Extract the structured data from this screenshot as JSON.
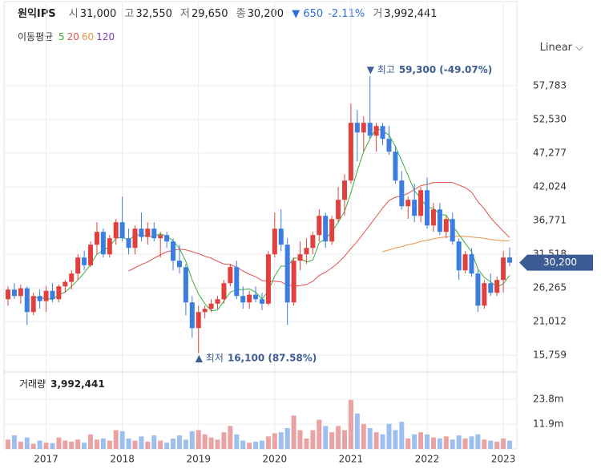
{
  "header": {
    "name": "원익IPS",
    "open_label": "시",
    "open": "31,000",
    "high_label": "고",
    "high": "32,550",
    "low_label": "저",
    "low": "29,650",
    "close_label": "종",
    "close": "30,200",
    "change": "▼ 650",
    "change_pct": "-2.11%",
    "volume_label": "거",
    "volume": "3,992,441"
  },
  "chart_data": {
    "type": "candlestick",
    "categories": [
      null,
      null,
      null,
      null,
      null,
      null,
      "2017",
      null,
      null,
      null,
      null,
      null,
      null,
      null,
      null,
      null,
      null,
      null,
      "2018",
      null,
      null,
      null,
      null,
      null,
      null,
      null,
      null,
      null,
      null,
      null,
      "2019",
      null,
      null,
      null,
      null,
      null,
      null,
      null,
      null,
      null,
      null,
      null,
      "2020",
      null,
      null,
      null,
      null,
      null,
      null,
      null,
      null,
      null,
      null,
      null,
      "2021",
      null,
      null,
      null,
      null,
      null,
      null,
      null,
      null,
      null,
      null,
      null,
      "2022",
      null,
      null,
      null,
      null,
      null,
      null,
      null,
      null,
      null,
      null,
      null,
      "2023",
      null
    ],
    "open": [
      24500,
      26000,
      25000,
      26200,
      22500,
      25000,
      24200,
      25800,
      24500,
      26500,
      27200,
      28500,
      31000,
      29800,
      33000,
      35000,
      31500,
      34000,
      36500,
      34000,
      32500,
      35500,
      34200,
      35500,
      34000,
      34500,
      33500,
      30500,
      29500,
      24000,
      20000,
      22500,
      23000,
      23800,
      24500,
      27000,
      29500,
      25000,
      24000,
      25200,
      24500,
      23800,
      31500,
      35500,
      33000,
      24000,
      30500,
      31500,
      32500,
      34500,
      37500,
      33500,
      37000,
      40000,
      43000,
      52000,
      50500,
      52000,
      50000,
      51500,
      49500,
      47500,
      43000,
      39000,
      40000,
      37500,
      41500,
      36000,
      38500,
      35000,
      37000,
      33500,
      29000,
      31500,
      28500,
      23500,
      27000,
      25500,
      27500,
      31000
    ],
    "high": [
      26500,
      27000,
      26800,
      26500,
      25500,
      26000,
      26500,
      27000,
      26800,
      27500,
      29000,
      31500,
      32000,
      33500,
      36500,
      35500,
      34500,
      37000,
      40500,
      35500,
      36000,
      38000,
      36500,
      36500,
      35000,
      35000,
      34000,
      33000,
      30000,
      25000,
      23500,
      23500,
      24500,
      25000,
      27500,
      30000,
      30500,
      26500,
      25800,
      26500,
      25500,
      32000,
      38000,
      38500,
      34000,
      31000,
      33500,
      34000,
      35000,
      38500,
      38000,
      37500,
      42000,
      44000,
      55000,
      54000,
      53000,
      59300,
      52000,
      52000,
      51500,
      48500,
      44500,
      40500,
      42500,
      42000,
      43500,
      39500,
      39500,
      37500,
      38000,
      34000,
      32000,
      32500,
      29000,
      27500,
      28500,
      28000,
      32000,
      32550
    ],
    "low": [
      23500,
      24500,
      23800,
      20500,
      22000,
      23000,
      22500,
      24000,
      24000,
      25500,
      26000,
      27500,
      29000,
      29500,
      31500,
      31000,
      31000,
      33000,
      33500,
      31500,
      31500,
      33500,
      33000,
      33500,
      31000,
      32500,
      29000,
      28500,
      22000,
      18500,
      16100,
      21500,
      22500,
      23000,
      23800,
      26500,
      24500,
      23000,
      23000,
      24000,
      22800,
      23500,
      31000,
      32000,
      20500,
      23500,
      29000,
      30000,
      31500,
      33500,
      32500,
      33000,
      36500,
      37500,
      42500,
      46000,
      47500,
      49500,
      47500,
      48500,
      47000,
      42500,
      38500,
      37000,
      36500,
      36500,
      35500,
      35000,
      34500,
      34000,
      33000,
      27500,
      28500,
      28000,
      22500,
      23000,
      25000,
      25000,
      25500,
      29650
    ],
    "close": [
      26000,
      25000,
      26200,
      22500,
      25000,
      24200,
      25800,
      24500,
      26500,
      27200,
      28500,
      31000,
      29800,
      33000,
      35000,
      31500,
      34000,
      36500,
      34000,
      32500,
      35500,
      34200,
      35500,
      34000,
      34500,
      33500,
      30500,
      29500,
      24000,
      20000,
      22500,
      23000,
      23800,
      24500,
      27000,
      29500,
      25000,
      24000,
      25200,
      24500,
      23800,
      31500,
      35500,
      33000,
      24000,
      30500,
      31500,
      32500,
      34500,
      37500,
      33500,
      37000,
      40000,
      43000,
      52000,
      50500,
      52000,
      50000,
      51500,
      49500,
      47500,
      43000,
      39000,
      40000,
      37500,
      41500,
      36000,
      38500,
      35000,
      37000,
      33500,
      29000,
      31500,
      28500,
      23500,
      27000,
      25500,
      27500,
      31000,
      30200
    ],
    "colors": {
      "up": "#e0413f",
      "down": "#3b7de0"
    },
    "ylim": [
      13400,
      60900
    ],
    "yticks": [
      {
        "value": 15759,
        "label": "15,759"
      },
      {
        "value": 21012,
        "label": "21,012"
      },
      {
        "value": 26265,
        "label": "26,265"
      },
      {
        "value": 31518,
        "label": "31,518"
      },
      {
        "value": 36771,
        "label": "36,771"
      },
      {
        "value": 42024,
        "label": "42,024"
      },
      {
        "value": 47277,
        "label": "47,277"
      },
      {
        "value": 52530,
        "label": "52,530"
      },
      {
        "value": 57783,
        "label": "57,783"
      }
    ],
    "grid": true,
    "moving_average_title": "이동평균",
    "moving_averages": [
      {
        "name": "5",
        "color": "#3cae3c",
        "values": [
          null,
          null,
          null,
          null,
          24900,
          24600,
          24700,
          24400,
          25200,
          25600,
          26500,
          27500,
          28600,
          29900,
          31500,
          32100,
          32700,
          34000,
          34200,
          33700,
          34500,
          34500,
          34300,
          34300,
          34700,
          34300,
          33600,
          32400,
          30400,
          27500,
          25300,
          23800,
          22700,
          22800,
          24200,
          25600,
          26000,
          26000,
          26100,
          25600,
          24500,
          25800,
          28100,
          29700,
          29600,
          30900,
          30900,
          30300,
          30600,
          33300,
          33900,
          35000,
          36500,
          38200,
          41100,
          44500,
          47500,
          49500,
          51200,
          50700,
          50100,
          48300,
          46100,
          43800,
          41400,
          40200,
          38800,
          38700,
          37700,
          37600,
          36000,
          34600,
          33200,
          31900,
          29200,
          27900,
          27200,
          26400,
          26900,
          28200
        ]
      },
      {
        "name": "20",
        "color": "#e0524f",
        "values": [
          null,
          null,
          null,
          null,
          null,
          null,
          null,
          null,
          null,
          null,
          null,
          null,
          null,
          null,
          null,
          null,
          null,
          null,
          null,
          28900,
          29400,
          29900,
          30300,
          30900,
          31400,
          31900,
          32100,
          32300,
          32200,
          31900,
          31600,
          31200,
          30900,
          30400,
          30000,
          29900,
          29500,
          28900,
          28400,
          28000,
          27400,
          27300,
          27300,
          27200,
          26700,
          26600,
          26600,
          26800,
          27300,
          28200,
          28700,
          29400,
          30200,
          31200,
          32400,
          33500,
          34800,
          36100,
          37400,
          38700,
          39900,
          40400,
          40600,
          41000,
          41600,
          42200,
          42400,
          42700,
          42700,
          42700,
          42700,
          42300,
          41900,
          41200,
          39700,
          38600,
          37200,
          36100,
          35100,
          34100
        ]
      },
      {
        "name": "60",
        "color": "#e8944a",
        "values": [
          null,
          null,
          null,
          null,
          null,
          null,
          null,
          null,
          null,
          null,
          null,
          null,
          null,
          null,
          null,
          null,
          null,
          null,
          null,
          null,
          null,
          null,
          null,
          null,
          null,
          null,
          null,
          null,
          null,
          null,
          null,
          null,
          null,
          null,
          null,
          null,
          null,
          null,
          null,
          null,
          null,
          null,
          null,
          null,
          null,
          null,
          null,
          null,
          null,
          null,
          null,
          null,
          null,
          null,
          null,
          null,
          null,
          null,
          null,
          31900,
          32200,
          32500,
          32700,
          33000,
          33200,
          33500,
          33700,
          33900,
          34100,
          34200,
          34300,
          34300,
          34300,
          34200,
          34100,
          34000,
          33800,
          33700,
          33600,
          33600
        ]
      },
      {
        "name": "120",
        "color": "#7a3fc4",
        "values": [
          null,
          null,
          null,
          null,
          null,
          null,
          null,
          null,
          null,
          null,
          null,
          null,
          null,
          null,
          null,
          null,
          null,
          null,
          null,
          null,
          null,
          null,
          null,
          null,
          null,
          null,
          null,
          null,
          null,
          null,
          null,
          null,
          null,
          null,
          null,
          null,
          null,
          null,
          null,
          null,
          null,
          null,
          null,
          null,
          null,
          null,
          null,
          null,
          null,
          null,
          null,
          null,
          null,
          null,
          null,
          null,
          null,
          null,
          null,
          null,
          null,
          null,
          null,
          null,
          null,
          null,
          null,
          null,
          null,
          null,
          null,
          null,
          null,
          null,
          null,
          null,
          null,
          null,
          null,
          null
        ]
      }
    ],
    "max_annotation": {
      "label": "▼ 최고",
      "text": "59,300 (-49.07%)"
    },
    "min_annotation": {
      "label": "▲ 최저",
      "text": "16,100 (87.58%)"
    },
    "last_price_label": "30,200",
    "last_price_color": "#3d5c94",
    "scale_label": "Linear ⌵",
    "volume": {
      "title": "거래량",
      "title_value": "3,992,441",
      "values": [
        4500000,
        6500000,
        3500000,
        5500000,
        2500000,
        4000000,
        3000000,
        2800000,
        5500000,
        4000000,
        3500000,
        4500000,
        3000000,
        7000000,
        4500000,
        5000000,
        4000000,
        9000000,
        8500000,
        5000000,
        4000000,
        6000000,
        3500000,
        6500000,
        4000000,
        3000000,
        5000000,
        6500000,
        4500000,
        8500000,
        9000000,
        7000000,
        5500000,
        4500000,
        8000000,
        11000000,
        7000000,
        4000000,
        3000000,
        3500000,
        4000000,
        6000000,
        7500000,
        8000000,
        10000000,
        16000000,
        9000000,
        5000000,
        9000000,
        14000000,
        11000000,
        8000000,
        11000000,
        9000000,
        23500000,
        17000000,
        12000000,
        10000000,
        8000000,
        7000000,
        12000000,
        9000000,
        13000000,
        5000000,
        7000000,
        8000000,
        7000000,
        5500000,
        5000000,
        6000000,
        4500000,
        6500000,
        5000000,
        6000000,
        7000000,
        4500000,
        4000000,
        3500000,
        5000000,
        3992441
      ],
      "colors": {
        "up": "#eaa2a2",
        "down": "#9dbff0"
      },
      "ylim": [
        0,
        35700000
      ],
      "yticks": [
        {
          "value": 11900000,
          "label": "11.9m"
        },
        {
          "value": 23800000,
          "label": "23.8m"
        }
      ]
    }
  }
}
